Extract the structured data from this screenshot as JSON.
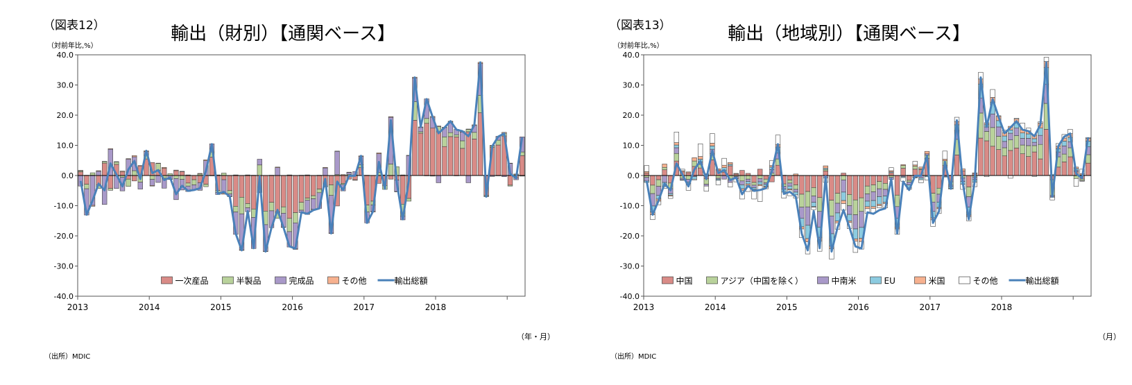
{
  "chart_data": [
    {
      "type": "bar",
      "figure_label": "（図表12）",
      "title": "輸出（財別）【通関ベース】",
      "ylabel": "（対前年比,%）",
      "x_unit": "（年・月）",
      "source": "（出所）MDIC",
      "ylim": [
        -40,
        40
      ],
      "y_ticks": [
        "40.0",
        "30.0",
        "20.0",
        "10.0",
        "0.0",
        "-10.0",
        "-20.0",
        "-30.0",
        "-40.0"
      ],
      "x_ticks": [
        "2013",
        "2014",
        "2015",
        "2016",
        "2017",
        "2018"
      ],
      "legend_position": "bottom",
      "stacked": true,
      "series": [
        {
          "name": "一次産品",
          "color": "#d98b87",
          "values": [
            1.2,
            -2.9,
            0.1,
            -3.1,
            4.1,
            -4.3,
            3.7,
            1.2,
            -1.2,
            -1.8,
            3.2,
            5.5,
            4.3,
            1.8,
            2.4,
            0.0,
            1.6,
            1.3,
            -2.5,
            -1.4,
            -2.4,
            -2.9,
            6.1,
            -5.0,
            -1.4,
            -5.0,
            -10.2,
            -7.2,
            -9.3,
            -11.1,
            -5.5,
            -11.8,
            -8.9,
            -12.1,
            -10.4,
            -14.2,
            -12.3,
            -8.9,
            -7.5,
            -6.7,
            -4.5,
            -3.5,
            -3.1,
            -10.1,
            -2.6,
            -1.2,
            -1.4,
            2.6,
            -9.8,
            -8.5,
            -2.6,
            -3.3,
            -1.2,
            -1.5,
            -9.5,
            -7.6,
            18.3,
            14.0,
            17.3,
            15.7,
            14.5,
            9.6,
            12.9,
            12.8,
            9.0,
            14.5,
            12.1,
            20.8,
            -6.6,
            9.3,
            10.1,
            13.1,
            -3.2,
            -0.8,
            6.6
          ]
        },
        {
          "name": "半製品",
          "color": "#b9d29b",
          "values": [
            0.3,
            -1.5,
            0.8,
            -1.2,
            0.5,
            -0.6,
            0.8,
            -0.6,
            -2.4,
            1.6,
            -2.2,
            1.2,
            -1.3,
            2.2,
            -0.9,
            0.6,
            -1.0,
            -1.3,
            -1.0,
            -1.7,
            0.5,
            -0.8,
            1.7,
            -0.6,
            0.8,
            -1.1,
            -1.9,
            -5.5,
            -1.4,
            -2.8,
            3.5,
            -4.5,
            -2.8,
            -2.1,
            -2.1,
            -4.4,
            -3.4,
            -2.6,
            -0.7,
            -1.0,
            -1.2,
            -0.3,
            -3.5,
            0.3,
            -0.4,
            0.4,
            0.2,
            1.0,
            -2.3,
            -1.3,
            1.0,
            -1.3,
            3.8,
            2.9,
            -3.9,
            -0.9,
            6.2,
            0.5,
            1.6,
            -0.2,
            1.7,
            3.2,
            1.3,
            0.7,
            2.5,
            0.8,
            2.2,
            5.8,
            -0.3,
            0.5,
            1.6,
            0.9,
            -0.3,
            0.3,
            1.2
          ]
        },
        {
          "name": "完成品",
          "color": "#a999c9",
          "values": [
            -3.5,
            -8.7,
            -9.9,
            1.4,
            -9.6,
            8.7,
            -4.3,
            -4.5,
            5.4,
            4.6,
            -2.3,
            1.2,
            -2.0,
            -2.3,
            -3.3,
            -1.2,
            -7.0,
            -3.5,
            -1.8,
            -1.6,
            -2.5,
            4.9,
            2.7,
            -0.7,
            -4.5,
            -0.8,
            -7.4,
            -12.0,
            -1.3,
            -10.3,
            1.9,
            -8.8,
            -5.6,
            2.6,
            -4.6,
            -5.1,
            -8.6,
            -0.8,
            -4.7,
            -3.5,
            -5.2,
            2.5,
            -12.5,
            7.7,
            -2.1,
            0.6,
            1.1,
            2.7,
            -3.6,
            -2.1,
            6.2,
            0.1,
            15.5,
            -3.8,
            -1.3,
            6.6,
            7.8,
            1.4,
            6.5,
            3.6,
            -2.4,
            3.1,
            3.6,
            1.8,
            2.9,
            -2.4,
            2.3,
            10.5,
            -0.1,
            -0.3,
            1.3,
            -0.4,
            4.0,
            -0.6,
            5.0
          ]
        },
        {
          "name": "その他",
          "color": "#f7b18f",
          "values": [
            0.2,
            0.1,
            -0.3,
            0.2,
            0.1,
            0.2,
            0.1,
            0.3,
            0.2,
            0.4,
            0.1,
            0.3,
            -0.2,
            0.1,
            0.3,
            -0.1,
            0.2,
            0.1,
            0.2,
            -0.1,
            0.2,
            0.3,
            -0.1,
            0.2,
            -0.3,
            -0.1,
            0.2,
            -0.1,
            0.2,
            0.1,
            -0.2,
            -0.1,
            0.1,
            0.2,
            -0.1,
            0.2,
            -0.2,
            0.1,
            0.2,
            -0.3,
            0.1,
            0.2,
            -0.1,
            0.1,
            0.3,
            0.1,
            -0.2,
            0.2,
            0.1,
            -0.2,
            0.3,
            0.1,
            0.2,
            -0.1,
            0.2,
            0.1,
            0.3,
            0.2,
            -0.1,
            0.3,
            0.2,
            0.1,
            0.2,
            -0.1,
            0.3,
            0.1,
            0.2,
            0.4,
            0.1,
            0.2,
            -0.1,
            0.3,
            0.1,
            0.2,
            -0.2
          ]
        }
      ],
      "line": {
        "name": "輸出総額",
        "color": "#4a81b9",
        "values": [
          -1.8,
          -13.0,
          -8.3,
          -2.7,
          -4.9,
          4.0,
          0.3,
          -3.6,
          2.0,
          4.8,
          -1.2,
          8.2,
          0.8,
          1.8,
          -1.5,
          -0.7,
          -6.2,
          -3.4,
          -5.1,
          -4.8,
          -4.2,
          1.5,
          10.4,
          -6.1,
          -5.4,
          -7.0,
          -19.3,
          -24.8,
          -11.8,
          -24.1,
          -0.3,
          -25.2,
          -17.2,
          -11.4,
          -17.2,
          -23.5,
          -24.2,
          -12.2,
          -12.7,
          -11.5,
          -10.9,
          -1.1,
          -19.2,
          -2.0,
          -4.8,
          -0.1,
          -0.1,
          6.5,
          -15.7,
          -11.9,
          4.5,
          -4.4,
          18.3,
          -2.5,
          -14.5,
          -1.8,
          32.5,
          16.1,
          25.3,
          19.4,
          14.0,
          15.9,
          18.0,
          15.2,
          14.7,
          13.0,
          16.8,
          37.5,
          -7.0,
          9.7,
          12.9,
          13.9,
          0.6,
          -0.9,
          12.6
        ]
      }
    },
    {
      "type": "bar",
      "figure_label": "（図表13）",
      "title": "輸出（地域別）【通関ベース】",
      "ylabel": "（対前年比,%）",
      "x_unit": "（月）",
      "source": "（出所）MDIC",
      "ylim": [
        -40,
        40
      ],
      "y_ticks": [
        "40.0",
        "30.0",
        "20.0",
        "10.0",
        "0.0",
        "-10.0",
        "-20.0",
        "-30.0",
        "-40.0"
      ],
      "x_ticks": [
        "2013",
        "2014",
        "2015",
        "2016",
        "2017",
        "2018"
      ],
      "legend_position": "bottom",
      "stacked": true,
      "series": [
        {
          "name": "中国",
          "color": "#d98b87",
          "values": [
            0.8,
            -3.2,
            -1.4,
            1.9,
            -2.5,
            4.8,
            1.2,
            0.9,
            3.0,
            2.5,
            -1.1,
            5.2,
            1.8,
            1.1,
            3.2,
            0.5,
            1.7,
            0.7,
            -2.3,
            2.1,
            -1.2,
            -2.1,
            3.4,
            -2.8,
            -1.5,
            -3.1,
            -6.2,
            -5.3,
            -4.0,
            -7.3,
            1.5,
            -8.2,
            -5.9,
            0.8,
            -6.3,
            -8.1,
            -7.4,
            -3.5,
            -3.1,
            -2.0,
            -2.6,
            0.9,
            -6.5,
            2.4,
            -1.6,
            2.1,
            1.9,
            5.6,
            -5.9,
            -4.2,
            3.3,
            -2.1,
            6.8,
            1.5,
            -3.8,
            0.6,
            12.4,
            11.5,
            9.7,
            8.6,
            6.5,
            8.3,
            9.1,
            7.2,
            6.3,
            7.8,
            5.5,
            15.3,
            -1.4,
            2.8,
            4.5,
            6.2,
            1.3,
            -1.2,
            4.1
          ]
        },
        {
          "name": "アジア（中国を除く）",
          "color": "#b9d29b",
          "values": [
            -0.6,
            -2.8,
            -2.2,
            0.8,
            -1.9,
            2.5,
            -0.9,
            -1.3,
            1.8,
            1.2,
            -1.8,
            2.0,
            -0.9,
            0.7,
            -1.5,
            -0.3,
            -1.8,
            -1.2,
            -0.9,
            -1.0,
            -1.2,
            0.8,
            2.1,
            -0.8,
            -1.0,
            -1.5,
            -4.3,
            -5.1,
            -2.8,
            -4.6,
            0.5,
            -5.2,
            -3.3,
            -1.5,
            -3.7,
            -4.9,
            -4.5,
            -2.6,
            -2.3,
            -2.4,
            -2.0,
            -0.6,
            -3.8,
            0.9,
            -0.6,
            1.0,
            0.3,
            1.2,
            -2.9,
            -2.0,
            1.6,
            -1.1,
            5.2,
            -0.8,
            -3.2,
            -0.5,
            8.3,
            3.1,
            6.2,
            4.4,
            2.7,
            3.5,
            4.1,
            2.9,
            3.6,
            2.1,
            4.8,
            8.6,
            -5.2,
            3.4,
            2.6,
            3.0,
            -1.0,
            -0.5,
            2.8
          ]
        },
        {
          "name": "中南米",
          "color": "#a999c9",
          "values": [
            -1.2,
            -4.1,
            -3.0,
            -2.3,
            -1.6,
            1.9,
            -0.5,
            -0.9,
            -0.4,
            0.8,
            -0.6,
            1.5,
            -0.3,
            -1.2,
            -0.8,
            -0.6,
            -1.3,
            -0.8,
            -0.8,
            -1.1,
            -0.5,
            1.2,
            2.0,
            -0.9,
            -1.0,
            -0.9,
            -3.7,
            -6.1,
            -2.1,
            -5.2,
            -0.8,
            -5.9,
            -3.2,
            -4.0,
            -2.9,
            -4.7,
            -5.3,
            -2.4,
            -2.9,
            -2.6,
            -2.2,
            -0.7,
            -3.9,
            -0.4,
            -0.9,
            -0.6,
            -0.8,
            0.4,
            -3.1,
            -2.6,
            -0.3,
            -0.5,
            2.9,
            -1.2,
            -3.5,
            -0.9,
            5.0,
            1.5,
            4.5,
            3.1,
            2.1,
            2.2,
            2.5,
            2.2,
            2.4,
            1.1,
            3.0,
            6.4,
            -0.4,
            1.6,
            2.7,
            2.0,
            0.4,
            -0.2,
            2.6
          ]
        },
        {
          "name": "EU",
          "color": "#8ccbe0",
          "values": [
            -0.5,
            -2.0,
            -1.2,
            -1.4,
            -0.5,
            0.9,
            -0.2,
            -0.4,
            -0.8,
            0.9,
            0.4,
            1.1,
            -0.4,
            0.8,
            0.5,
            -0.2,
            -1.3,
            -0.8,
            -0.6,
            -0.9,
            -0.7,
            0.8,
            1.9,
            -1.0,
            -1.0,
            -0.9,
            -2.8,
            -4.4,
            -1.4,
            -3.4,
            0.4,
            -4.1,
            -2.7,
            -2.8,
            -2.2,
            -3.3,
            -3.6,
            -1.8,
            -2.0,
            -2.5,
            -2.1,
            0.3,
            -2.9,
            -0.3,
            -1.0,
            -0.2,
            -0.6,
            -0.4,
            -2.1,
            -1.8,
            -0.2,
            -0.6,
            1.9,
            -0.9,
            -2.6,
            -0.8,
            4.6,
            0.7,
            3.9,
            2.1,
            1.8,
            1.1,
            1.7,
            1.8,
            1.5,
            1.2,
            2.4,
            5.4,
            0.3,
            1.1,
            1.6,
            1.4,
            0.6,
            0.2,
            1.9
          ]
        },
        {
          "name": "米国",
          "color": "#f7b18f",
          "values": [
            0.5,
            -0.9,
            -0.7,
            1.1,
            -0.3,
            0.8,
            0.4,
            0.3,
            1.1,
            0.9,
            0.2,
            0.9,
            0.4,
            0.8,
            0.6,
            0.2,
            -0.6,
            -0.5,
            -0.6,
            -0.4,
            -0.3,
            0.5,
            0.9,
            0.1,
            -0.3,
            0.5,
            -0.7,
            -1.1,
            -0.2,
            -1.2,
            0.8,
            -0.9,
            -0.6,
            -1.0,
            -0.5,
            -0.8,
            -1.1,
            -0.7,
            -0.6,
            -0.5,
            -0.4,
            0.4,
            -0.6,
            0.3,
            0.1,
            0.4,
            0.6,
            0.8,
            -0.7,
            -0.4,
            0.5,
            0.1,
            1.1,
            0.7,
            -0.5,
            0.3,
            1.7,
            0.7,
            1.6,
            1.4,
            1.0,
            1.2,
            1.3,
            1.1,
            1.0,
            1.3,
            1.7,
            2.1,
            -0.2,
            0.8,
            1.0,
            1.3,
            0.5,
            0.4,
            0.9
          ]
        },
        {
          "name": "その他",
          "color": "#ffffff",
          "values": [
            2.0,
            -1.6,
            -1.2,
            -0.6,
            -0.8,
            3.5,
            0.5,
            -2.3,
            -0.3,
            4.2,
            -1.7,
            3.2,
            -1.5,
            2.3,
            -1.5,
            -1.0,
            -2.8,
            -2.0,
            -2.6,
            -5.2,
            -0.5,
            1.7,
            3.1,
            -2.0,
            -1.9,
            -1.1,
            -2.9,
            -4.0,
            -0.8,
            -3.4,
            -1.5,
            -3.4,
            -2.1,
            -2.2,
            -2.0,
            -3.7,
            -2.5,
            -1.6,
            -1.7,
            -0.7,
            -1.4,
            1.0,
            -1.8,
            -1.2,
            -0.5,
            1.2,
            -1.0,
            -1.1,
            -2.2,
            -1.6,
            2.7,
            -0.2,
            1.4,
            -1.7,
            -1.4,
            -1.5,
            2.2,
            -0.4,
            2.6,
            0.2,
            0.9,
            -0.9,
            0.3,
            2.2,
            0.9,
            -0.3,
            0.4,
            1.4,
            -0.9,
            0.9,
            1.2,
            1.4,
            -2.6,
            1.5,
            0.3
          ]
        }
      ],
      "line": {
        "name": "輸出総額",
        "color": "#4a81b9",
        "values": [
          -1.8,
          -13.0,
          -8.3,
          -2.7,
          -4.9,
          4.0,
          0.3,
          -3.6,
          2.0,
          4.8,
          -1.2,
          8.2,
          0.8,
          1.8,
          -1.5,
          -0.7,
          -6.2,
          -3.4,
          -5.1,
          -4.8,
          -4.2,
          1.5,
          10.4,
          -6.1,
          -5.4,
          -7.0,
          -19.3,
          -24.8,
          -11.8,
          -24.1,
          -0.3,
          -25.2,
          -17.2,
          -11.4,
          -17.2,
          -23.5,
          -24.2,
          -12.2,
          -12.7,
          -11.5,
          -10.9,
          -1.1,
          -19.2,
          -2.0,
          -4.8,
          -0.1,
          -0.1,
          6.5,
          -15.7,
          -11.9,
          4.5,
          -4.4,
          18.3,
          -2.5,
          -14.5,
          -1.8,
          32.5,
          16.1,
          25.3,
          19.4,
          14.0,
          15.9,
          18.0,
          15.2,
          14.7,
          13.0,
          16.8,
          37.5,
          -7.0,
          9.7,
          12.9,
          13.9,
          0.6,
          -0.9,
          12.6
        ]
      }
    }
  ]
}
